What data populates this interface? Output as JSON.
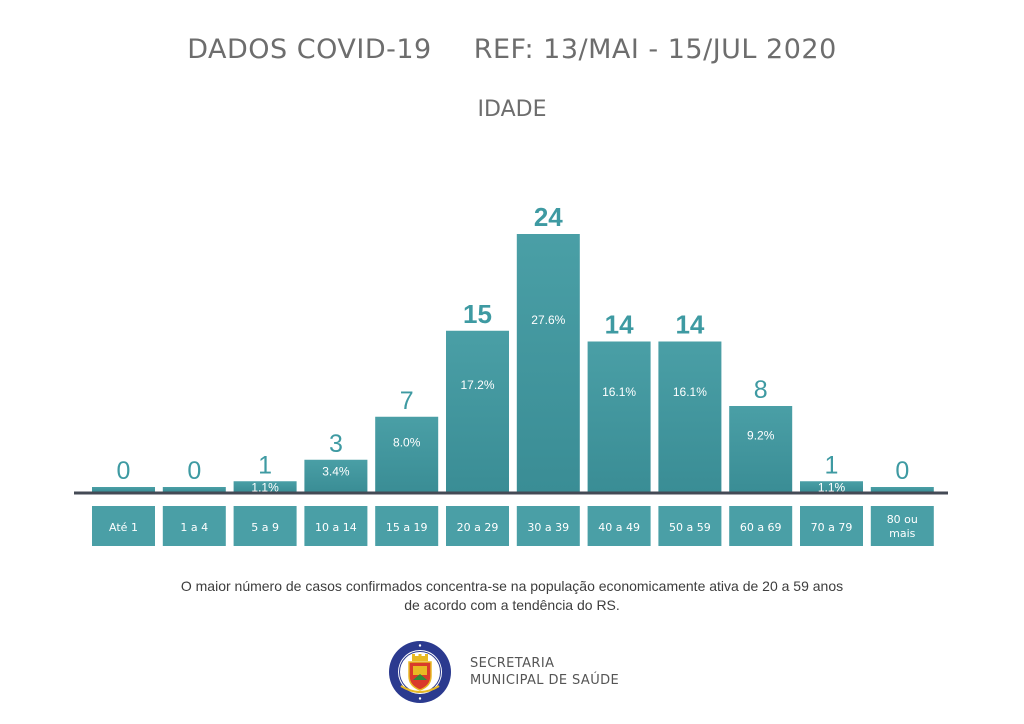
{
  "header": {
    "title": "DADOS COVID-19",
    "reference": "REF: 13/MAI - 15/JUL 2020",
    "subtitle": "IDADE"
  },
  "chart_data": {
    "type": "bar",
    "categories": [
      "Até 1",
      "1 a 4",
      "5 a 9",
      "10 a 14",
      "15 a 19",
      "20 a 29",
      "30 a 39",
      "40 a 49",
      "50 a 59",
      "60 a 69",
      "70 a 79",
      "80 ou mais"
    ],
    "values": [
      0,
      0,
      1,
      3,
      7,
      15,
      24,
      14,
      14,
      8,
      1,
      0
    ],
    "percent_labels": [
      "",
      "",
      "1.1%",
      "3.4%",
      "8.0%",
      "17.2%",
      "27.6%",
      "16.1%",
      "16.1%",
      "9.2%",
      "1.1%",
      ""
    ],
    "value_labels": [
      "0",
      "0",
      "1",
      "3",
      "7",
      "15",
      "24",
      "14",
      "14",
      "8",
      "1",
      "0"
    ],
    "bold_value_labels": [
      false,
      false,
      false,
      false,
      false,
      true,
      true,
      true,
      true,
      false,
      false,
      false
    ],
    "category_label_lines": [
      [
        "Até 1"
      ],
      [
        "1 a 4"
      ],
      [
        "5 a 9"
      ],
      [
        "10 a 14"
      ],
      [
        "15 a 19"
      ],
      [
        "20 a 29"
      ],
      [
        "30 a 39"
      ],
      [
        "40 a 49"
      ],
      [
        "50 a 59"
      ],
      [
        "60 a 69"
      ],
      [
        "70 a 79"
      ],
      [
        "80 ou",
        "mais"
      ]
    ],
    "ylim": [
      0,
      24
    ],
    "grid": false,
    "colors": {
      "bar": "#4a9fa6",
      "bar_gradient_end": "#3a8d95",
      "value_label": "#3e9aa2",
      "axis": "#444a55",
      "category_box": "#4a9fa6",
      "category_text": "#ffffff",
      "percent_text": "#ffffff"
    }
  },
  "footnote": {
    "line1": "O maior número de casos confirmados concentra-se na população economicamente ativa de 20 a 59 anos",
    "line2": "de acordo com a tendência do RS."
  },
  "branding": {
    "department_line1": "SECRETARIA",
    "department_line2": "MUNICIPAL DE SAÚDE",
    "seal_text_top": "PREFEITURA MUNICIPAL",
    "seal_text_bottom": "CANELA",
    "seal_icon": "city-coat-of-arms-icon",
    "colors": {
      "seal_ring": "#2b3a8f",
      "seal_inner": "#ffffff",
      "seal_shield": "#d93a2b",
      "seal_gold": "#e8b923"
    }
  }
}
